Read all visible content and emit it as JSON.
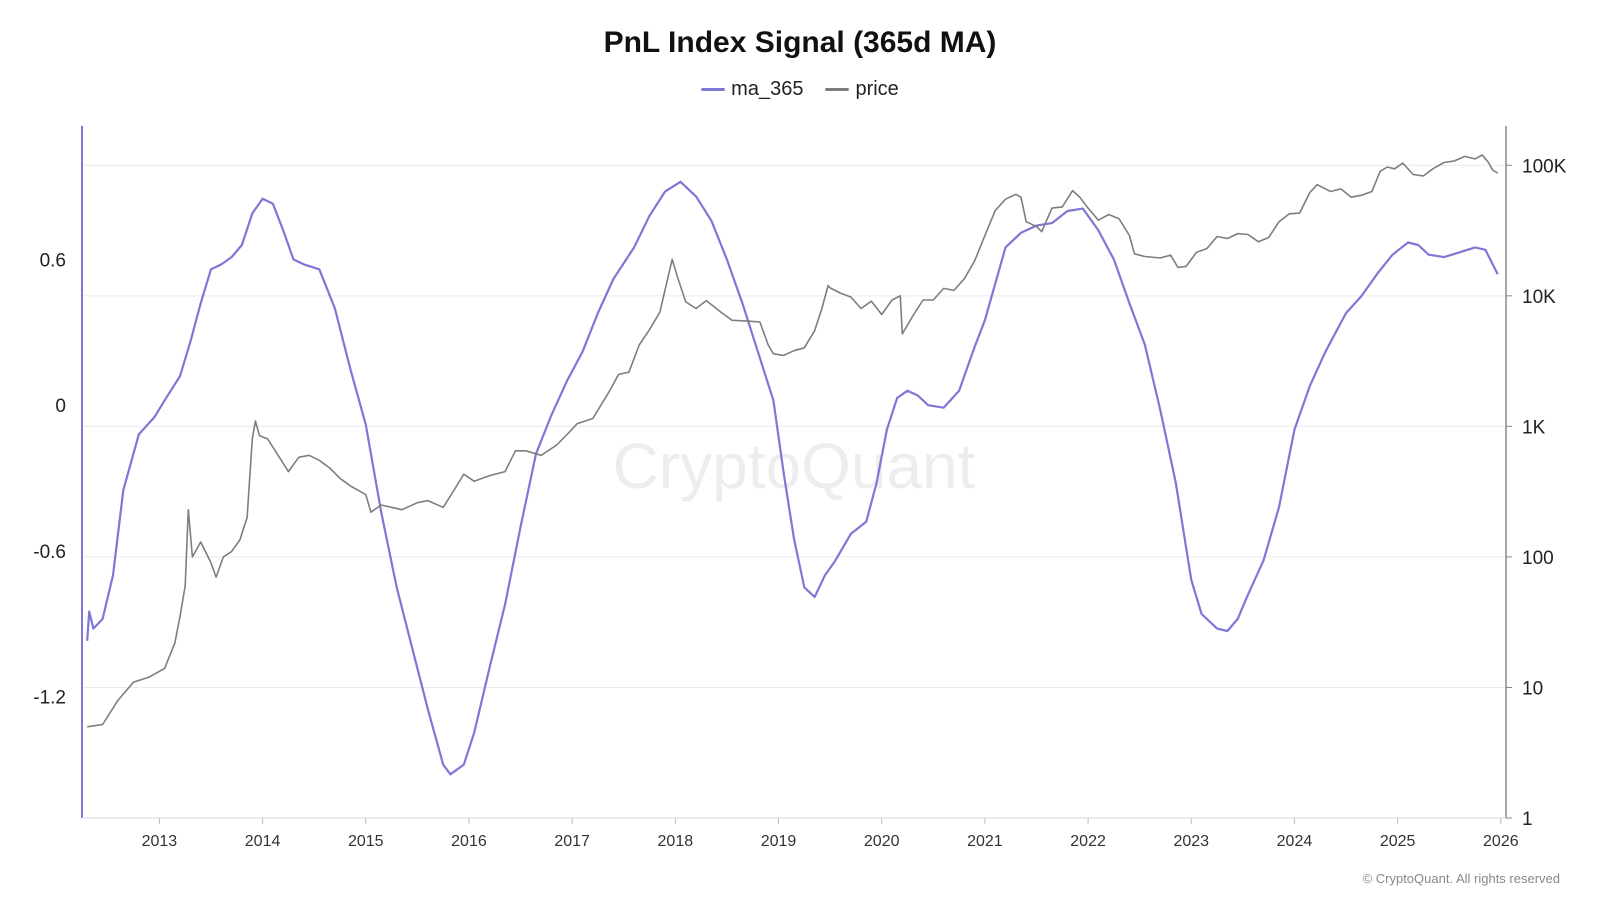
{
  "chart_data": {
    "type": "line",
    "title": "PnL Index Signal (365d MA)",
    "watermark": "CryptoQuant",
    "footer": "© CryptoQuant. All rights reserved",
    "colors": {
      "ma_365": "#7f77d6",
      "price": "#7e7e7e",
      "grid": "#ececec",
      "axis": "#7f77d6"
    },
    "legend_position": "top-center",
    "grid": true,
    "x_axis": {
      "range": [
        2012.25,
        2026.05
      ],
      "ticks": [
        "2013",
        "2014",
        "2015",
        "2016",
        "2017",
        "2018",
        "2019",
        "2020",
        "2021",
        "2022",
        "2023",
        "2024",
        "2025",
        "2026"
      ]
    },
    "y_left": {
      "range": [
        -1.7,
        1.15
      ],
      "ticks": [
        0.6,
        0,
        -0.6,
        -1.2
      ],
      "tick_labels": [
        "0.6",
        "0",
        "-0.6",
        "-1.2"
      ]
    },
    "y_right": {
      "scale": "log",
      "range": [
        1,
        200000
      ],
      "ticks": [
        1,
        10,
        100,
        1000,
        10000,
        100000
      ],
      "tick_labels": [
        "1",
        "10",
        "100",
        "1K",
        "10K",
        "100K"
      ]
    },
    "series": [
      {
        "name": "ma_365",
        "axis": "left",
        "points": [
          [
            2012.3,
            -0.97
          ],
          [
            2012.32,
            -0.85
          ],
          [
            2012.36,
            -0.92
          ],
          [
            2012.45,
            -0.88
          ],
          [
            2012.55,
            -0.7
          ],
          [
            2012.65,
            -0.35
          ],
          [
            2012.8,
            -0.12
          ],
          [
            2012.95,
            -0.05
          ],
          [
            2013.05,
            0.02
          ],
          [
            2013.2,
            0.12
          ],
          [
            2013.3,
            0.26
          ],
          [
            2013.4,
            0.42
          ],
          [
            2013.5,
            0.56
          ],
          [
            2013.6,
            0.58
          ],
          [
            2013.7,
            0.61
          ],
          [
            2013.8,
            0.66
          ],
          [
            2013.9,
            0.79
          ],
          [
            2014.0,
            0.85
          ],
          [
            2014.1,
            0.83
          ],
          [
            2014.2,
            0.72
          ],
          [
            2014.3,
            0.6
          ],
          [
            2014.4,
            0.58
          ],
          [
            2014.55,
            0.56
          ],
          [
            2014.7,
            0.4
          ],
          [
            2014.85,
            0.15
          ],
          [
            2015.0,
            -0.08
          ],
          [
            2015.15,
            -0.44
          ],
          [
            2015.3,
            -0.75
          ],
          [
            2015.45,
            -1.0
          ],
          [
            2015.6,
            -1.25
          ],
          [
            2015.75,
            -1.48
          ],
          [
            2015.82,
            -1.52
          ],
          [
            2015.95,
            -1.48
          ],
          [
            2016.05,
            -1.35
          ],
          [
            2016.2,
            -1.08
          ],
          [
            2016.35,
            -0.82
          ],
          [
            2016.5,
            -0.5
          ],
          [
            2016.65,
            -0.2
          ],
          [
            2016.8,
            -0.04
          ],
          [
            2016.95,
            0.1
          ],
          [
            2017.1,
            0.22
          ],
          [
            2017.25,
            0.38
          ],
          [
            2017.4,
            0.52
          ],
          [
            2017.6,
            0.65
          ],
          [
            2017.75,
            0.78
          ],
          [
            2017.9,
            0.88
          ],
          [
            2018.05,
            0.92
          ],
          [
            2018.2,
            0.86
          ],
          [
            2018.35,
            0.76
          ],
          [
            2018.5,
            0.6
          ],
          [
            2018.65,
            0.42
          ],
          [
            2018.8,
            0.22
          ],
          [
            2018.95,
            0.02
          ],
          [
            2019.05,
            -0.28
          ],
          [
            2019.15,
            -0.55
          ],
          [
            2019.25,
            -0.75
          ],
          [
            2019.35,
            -0.79
          ],
          [
            2019.45,
            -0.7
          ],
          [
            2019.55,
            -0.64
          ],
          [
            2019.7,
            -0.53
          ],
          [
            2019.85,
            -0.48
          ],
          [
            2019.95,
            -0.32
          ],
          [
            2020.05,
            -0.1
          ],
          [
            2020.15,
            0.03
          ],
          [
            2020.25,
            0.06
          ],
          [
            2020.35,
            0.04
          ],
          [
            2020.45,
            0.0
          ],
          [
            2020.6,
            -0.01
          ],
          [
            2020.75,
            0.06
          ],
          [
            2020.9,
            0.24
          ],
          [
            2021.0,
            0.35
          ],
          [
            2021.1,
            0.5
          ],
          [
            2021.2,
            0.65
          ],
          [
            2021.35,
            0.71
          ],
          [
            2021.5,
            0.74
          ],
          [
            2021.65,
            0.75
          ],
          [
            2021.8,
            0.8
          ],
          [
            2021.95,
            0.81
          ],
          [
            2022.1,
            0.72
          ],
          [
            2022.25,
            0.6
          ],
          [
            2022.4,
            0.42
          ],
          [
            2022.55,
            0.25
          ],
          [
            2022.7,
            -0.02
          ],
          [
            2022.85,
            -0.32
          ],
          [
            2023.0,
            -0.72
          ],
          [
            2023.1,
            -0.86
          ],
          [
            2023.25,
            -0.92
          ],
          [
            2023.35,
            -0.93
          ],
          [
            2023.45,
            -0.88
          ],
          [
            2023.55,
            -0.78
          ],
          [
            2023.7,
            -0.64
          ],
          [
            2023.85,
            -0.42
          ],
          [
            2024.0,
            -0.1
          ],
          [
            2024.15,
            0.08
          ],
          [
            2024.3,
            0.22
          ],
          [
            2024.4,
            0.3
          ],
          [
            2024.5,
            0.38
          ],
          [
            2024.65,
            0.45
          ],
          [
            2024.8,
            0.54
          ],
          [
            2024.95,
            0.62
          ],
          [
            2025.1,
            0.67
          ],
          [
            2025.2,
            0.66
          ],
          [
            2025.3,
            0.62
          ],
          [
            2025.45,
            0.61
          ],
          [
            2025.6,
            0.63
          ],
          [
            2025.75,
            0.65
          ],
          [
            2025.85,
            0.64
          ],
          [
            2025.97,
            0.54
          ]
        ]
      },
      {
        "name": "price",
        "axis": "right",
        "points": [
          [
            2012.3,
            5
          ],
          [
            2012.45,
            5.2
          ],
          [
            2012.6,
            8
          ],
          [
            2012.75,
            11
          ],
          [
            2012.9,
            12
          ],
          [
            2013.05,
            14
          ],
          [
            2013.15,
            22
          ],
          [
            2013.2,
            35
          ],
          [
            2013.25,
            60
          ],
          [
            2013.28,
            230
          ],
          [
            2013.32,
            100
          ],
          [
            2013.4,
            130
          ],
          [
            2013.5,
            90
          ],
          [
            2013.55,
            70
          ],
          [
            2013.62,
            100
          ],
          [
            2013.7,
            110
          ],
          [
            2013.78,
            135
          ],
          [
            2013.85,
            200
          ],
          [
            2013.9,
            800
          ],
          [
            2013.93,
            1100
          ],
          [
            2013.97,
            850
          ],
          [
            2014.05,
            800
          ],
          [
            2014.15,
            600
          ],
          [
            2014.25,
            450
          ],
          [
            2014.35,
            580
          ],
          [
            2014.45,
            600
          ],
          [
            2014.55,
            550
          ],
          [
            2014.65,
            480
          ],
          [
            2014.75,
            400
          ],
          [
            2014.85,
            350
          ],
          [
            2015.0,
            300
          ],
          [
            2015.05,
            220
          ],
          [
            2015.15,
            250
          ],
          [
            2015.25,
            240
          ],
          [
            2015.35,
            230
          ],
          [
            2015.5,
            260
          ],
          [
            2015.6,
            270
          ],
          [
            2015.75,
            240
          ],
          [
            2015.85,
            320
          ],
          [
            2015.95,
            430
          ],
          [
            2016.05,
            380
          ],
          [
            2016.2,
            420
          ],
          [
            2016.35,
            450
          ],
          [
            2016.45,
            650
          ],
          [
            2016.55,
            650
          ],
          [
            2016.7,
            600
          ],
          [
            2016.85,
            720
          ],
          [
            2016.97,
            900
          ],
          [
            2017.05,
            1050
          ],
          [
            2017.2,
            1150
          ],
          [
            2017.35,
            1800
          ],
          [
            2017.45,
            2500
          ],
          [
            2017.55,
            2600
          ],
          [
            2017.65,
            4200
          ],
          [
            2017.75,
            5500
          ],
          [
            2017.85,
            7500
          ],
          [
            2017.93,
            14000
          ],
          [
            2017.97,
            19000
          ],
          [
            2018.02,
            14000
          ],
          [
            2018.1,
            9000
          ],
          [
            2018.2,
            8000
          ],
          [
            2018.3,
            9200
          ],
          [
            2018.45,
            7400
          ],
          [
            2018.55,
            6500
          ],
          [
            2018.7,
            6400
          ],
          [
            2018.82,
            6300
          ],
          [
            2018.9,
            4200
          ],
          [
            2018.95,
            3600
          ],
          [
            2019.05,
            3500
          ],
          [
            2019.15,
            3800
          ],
          [
            2019.25,
            4000
          ],
          [
            2019.35,
            5400
          ],
          [
            2019.42,
            8000
          ],
          [
            2019.48,
            12000
          ],
          [
            2019.5,
            11500
          ],
          [
            2019.6,
            10500
          ],
          [
            2019.7,
            9800
          ],
          [
            2019.8,
            8000
          ],
          [
            2019.9,
            9100
          ],
          [
            2020.0,
            7200
          ],
          [
            2020.1,
            9300
          ],
          [
            2020.18,
            10000
          ],
          [
            2020.2,
            5100
          ],
          [
            2020.3,
            7000
          ],
          [
            2020.4,
            9300
          ],
          [
            2020.5,
            9300
          ],
          [
            2020.6,
            11400
          ],
          [
            2020.7,
            11000
          ],
          [
            2020.8,
            13500
          ],
          [
            2020.9,
            18500
          ],
          [
            2021.0,
            29000
          ],
          [
            2021.1,
            45000
          ],
          [
            2021.2,
            55000
          ],
          [
            2021.3,
            60000
          ],
          [
            2021.35,
            57000
          ],
          [
            2021.4,
            37000
          ],
          [
            2021.5,
            34000
          ],
          [
            2021.55,
            31000
          ],
          [
            2021.65,
            47000
          ],
          [
            2021.75,
            48000
          ],
          [
            2021.85,
            64000
          ],
          [
            2021.92,
            57000
          ],
          [
            2022.0,
            47000
          ],
          [
            2022.1,
            38000
          ],
          [
            2022.2,
            42000
          ],
          [
            2022.3,
            39000
          ],
          [
            2022.4,
            29000
          ],
          [
            2022.45,
            21000
          ],
          [
            2022.55,
            20000
          ],
          [
            2022.7,
            19500
          ],
          [
            2022.8,
            20500
          ],
          [
            2022.87,
            16500
          ],
          [
            2022.95,
            16800
          ],
          [
            2023.05,
            21500
          ],
          [
            2023.15,
            23000
          ],
          [
            2023.25,
            28500
          ],
          [
            2023.35,
            27500
          ],
          [
            2023.45,
            30000
          ],
          [
            2023.55,
            29500
          ],
          [
            2023.65,
            26000
          ],
          [
            2023.75,
            28000
          ],
          [
            2023.85,
            37000
          ],
          [
            2023.95,
            42500
          ],
          [
            2024.05,
            43000
          ],
          [
            2024.15,
            62000
          ],
          [
            2024.22,
            71000
          ],
          [
            2024.35,
            63000
          ],
          [
            2024.45,
            66000
          ],
          [
            2024.55,
            57000
          ],
          [
            2024.65,
            59000
          ],
          [
            2024.75,
            63000
          ],
          [
            2024.83,
            90000
          ],
          [
            2024.9,
            97000
          ],
          [
            2024.97,
            94000
          ],
          [
            2025.05,
            104000
          ],
          [
            2025.15,
            85000
          ],
          [
            2025.25,
            83000
          ],
          [
            2025.35,
            95000
          ],
          [
            2025.45,
            105000
          ],
          [
            2025.55,
            108000
          ],
          [
            2025.65,
            117000
          ],
          [
            2025.75,
            112000
          ],
          [
            2025.82,
            120000
          ],
          [
            2025.88,
            105000
          ],
          [
            2025.92,
            92000
          ],
          [
            2025.97,
            87000
          ]
        ]
      }
    ]
  }
}
